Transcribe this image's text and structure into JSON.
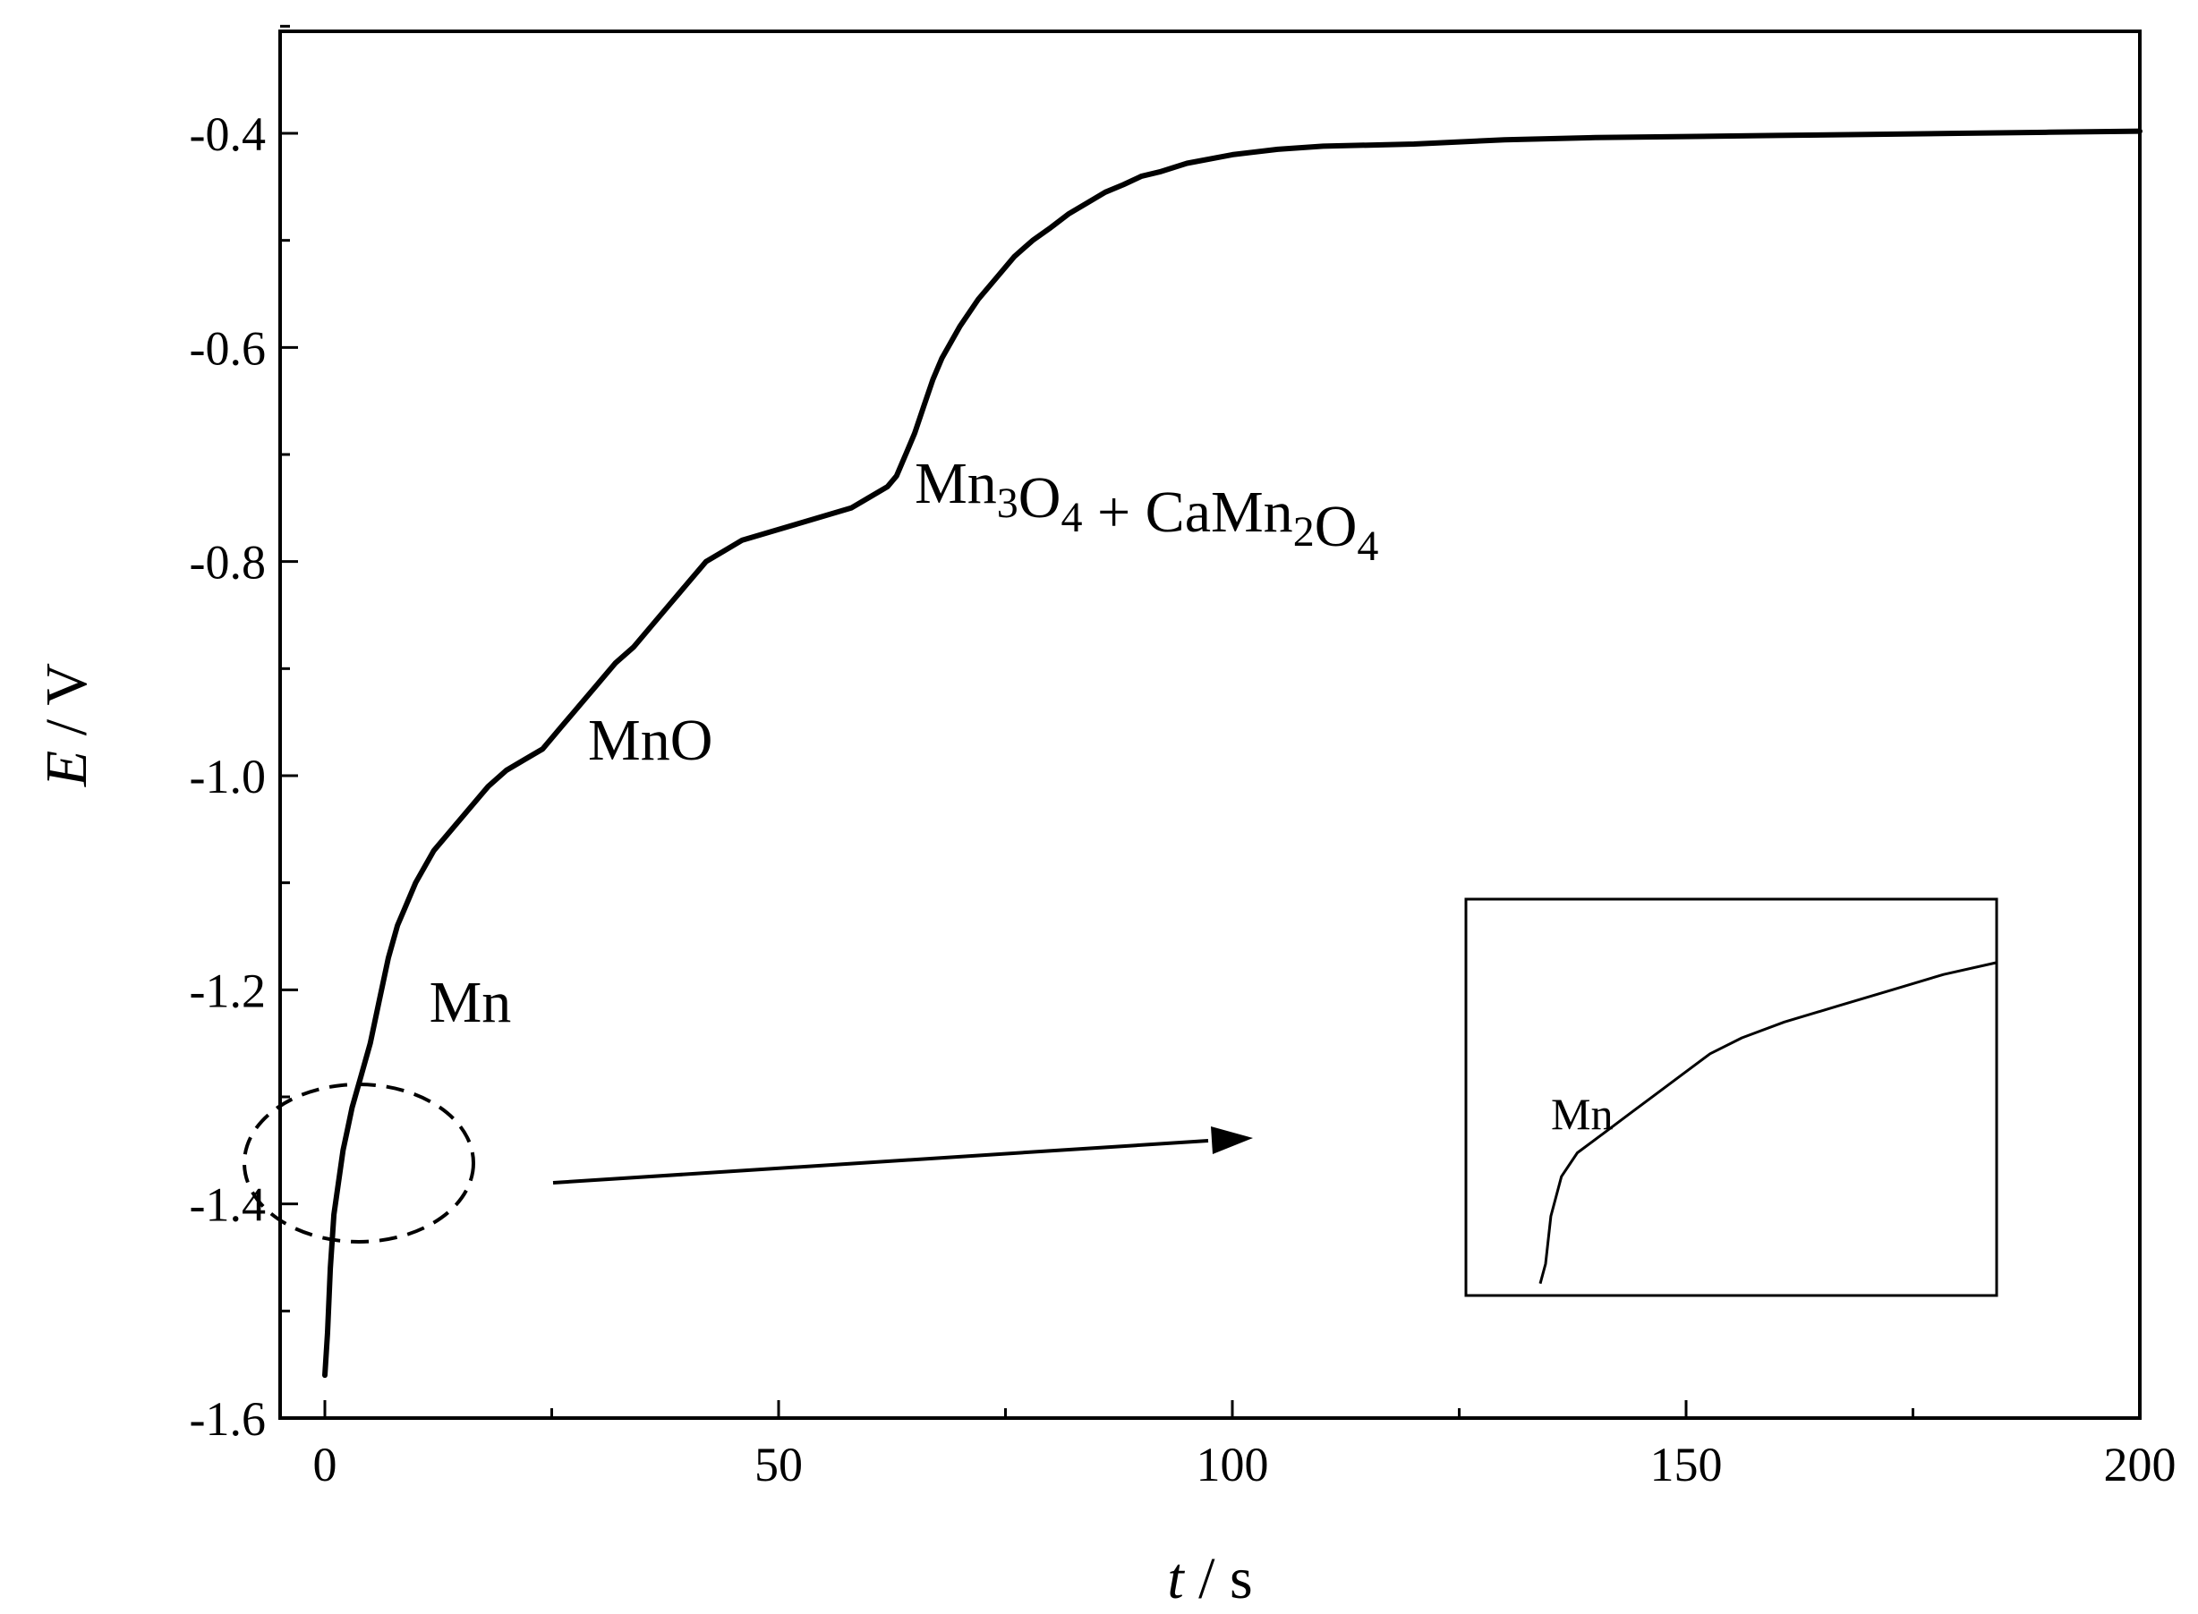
{
  "chart_data": {
    "type": "line",
    "title": "",
    "xlabel": {
      "symbol": "t",
      "unit": "s"
    },
    "ylabel": {
      "symbol": "E",
      "unit": "V"
    },
    "xlim": [
      -5,
      200
    ],
    "ylim": [
      -1.6,
      -0.3
    ],
    "x_ticks": [
      0,
      50,
      100,
      150,
      200
    ],
    "x_tick_labels": [
      "0",
      "50",
      "100",
      "150",
      "200"
    ],
    "x_minor_ticks": [
      25,
      75,
      125,
      175
    ],
    "y_ticks": [
      -1.6,
      -1.4,
      -1.2,
      -1.0,
      -0.8,
      -0.6,
      -0.4
    ],
    "y_tick_labels": [
      "-1.6",
      "-1.4",
      "-1.2",
      "-1.0",
      "-0.8",
      "-0.6",
      "-0.4"
    ],
    "y_minor_ticks": [
      -1.5,
      -1.3,
      -1.1,
      -0.9,
      -0.7,
      -0.5,
      -0.3
    ],
    "grid": false,
    "series": [
      {
        "x": [
          0,
          0.3,
          0.6,
          1,
          1.5,
          2,
          2.5,
          3,
          4,
          5,
          6,
          7,
          8,
          9,
          10,
          12,
          14,
          16,
          18,
          20,
          22,
          24,
          25,
          26,
          28,
          30,
          32,
          34,
          36,
          38,
          40,
          42,
          44,
          46,
          48,
          50,
          52,
          54,
          56,
          58,
          60,
          62,
          63,
          64,
          65,
          66,
          67,
          68,
          70,
          72,
          74,
          76,
          78,
          80,
          82,
          84,
          86,
          88,
          90,
          92,
          95,
          100,
          105,
          110,
          115,
          120,
          125,
          130,
          140,
          150,
          160,
          170,
          180,
          190,
          200
        ],
        "y": [
          -1.56,
          -1.52,
          -1.46,
          -1.41,
          -1.38,
          -1.35,
          -1.33,
          -1.31,
          -1.28,
          -1.25,
          -1.21,
          -1.17,
          -1.14,
          -1.12,
          -1.1,
          -1.07,
          -1.05,
          -1.03,
          -1.01,
          -0.995,
          -0.985,
          -0.975,
          -0.965,
          -0.955,
          -0.935,
          -0.915,
          -0.895,
          -0.88,
          -0.86,
          -0.84,
          -0.82,
          -0.8,
          -0.79,
          -0.78,
          -0.775,
          -0.77,
          -0.765,
          -0.76,
          -0.755,
          -0.75,
          -0.74,
          -0.73,
          -0.72,
          -0.7,
          -0.68,
          -0.655,
          -0.63,
          -0.61,
          -0.58,
          -0.555,
          -0.535,
          -0.515,
          -0.5,
          -0.488,
          -0.475,
          -0.465,
          -0.455,
          -0.448,
          -0.44,
          -0.436,
          -0.428,
          -0.42,
          -0.415,
          -0.412,
          -0.411,
          -0.41,
          -0.408,
          -0.406,
          -0.404,
          -0.403,
          -0.402,
          -0.401,
          -0.4,
          -0.399,
          -0.398
        ]
      }
    ],
    "annotations": [
      {
        "text": "Mn",
        "x": 11.5,
        "y": -1.23
      },
      {
        "text": "MnO",
        "x": 29,
        "y": -0.985
      },
      {
        "text": "Mn3O4 + CaMn2O4",
        "x": 65,
        "y": -0.745
      }
    ],
    "inset": {
      "label": "Mn",
      "curve": [
        [
          0.14,
          0.97
        ],
        [
          0.15,
          0.92
        ],
        [
          0.16,
          0.8
        ],
        [
          0.18,
          0.7
        ],
        [
          0.21,
          0.64
        ],
        [
          0.26,
          0.59
        ],
        [
          0.31,
          0.54
        ],
        [
          0.36,
          0.49
        ],
        [
          0.41,
          0.44
        ],
        [
          0.46,
          0.39
        ],
        [
          0.52,
          0.35
        ],
        [
          0.6,
          0.31
        ],
        [
          0.7,
          0.27
        ],
        [
          0.8,
          0.23
        ],
        [
          0.9,
          0.19
        ],
        [
          1.0,
          0.16
        ]
      ]
    }
  }
}
